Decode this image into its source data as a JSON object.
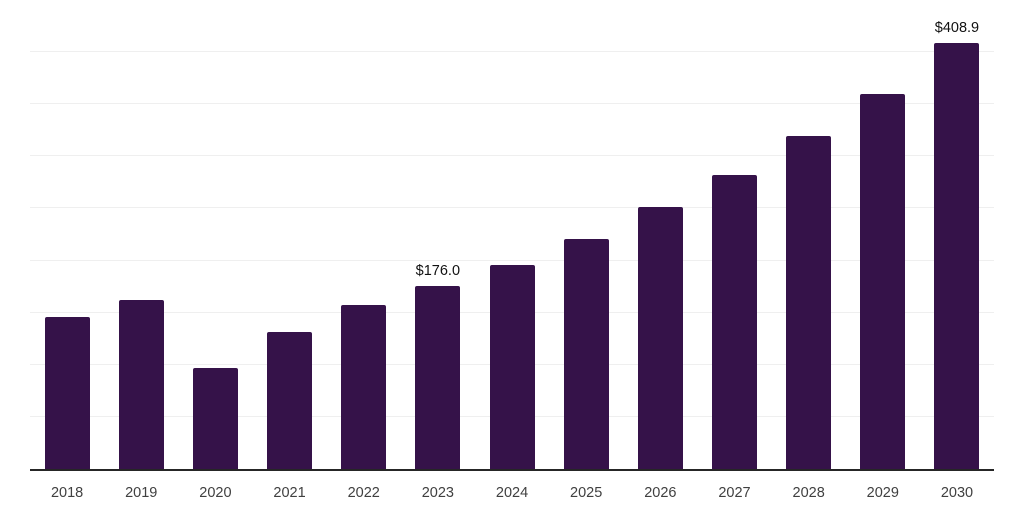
{
  "chart_data": {
    "type": "bar",
    "title": "",
    "xlabel": "",
    "ylabel": "",
    "categories": [
      "2018",
      "2019",
      "2020",
      "2021",
      "2022",
      "2023",
      "2024",
      "2025",
      "2026",
      "2027",
      "2028",
      "2029",
      "2030"
    ],
    "values": [
      146.0,
      162.6,
      96.5,
      131.5,
      157.1,
      176.0,
      196.2,
      220.5,
      251.8,
      282.5,
      319.9,
      360.2,
      408.9
    ],
    "point_labels": [
      "",
      "",
      "",
      "",
      "",
      "$176.0",
      "",
      "",
      "",
      "",
      "",
      "",
      "$408.9"
    ],
    "currency_prefix": "$",
    "ylim": [
      0,
      450
    ],
    "gridline_step": 50,
    "grid": "horizontal-only",
    "legend_position": "none",
    "y_axis_tick_labels_visible": false,
    "colors": {
      "bar": "#351249",
      "gridline": "#efefef",
      "axis_line": "#262626",
      "x_tick_label": "#404040",
      "data_label": "#111111",
      "background": "#ffffff"
    }
  }
}
